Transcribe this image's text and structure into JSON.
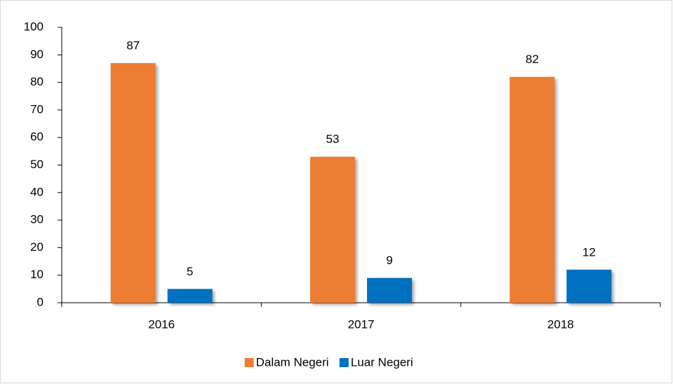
{
  "chart_data": {
    "type": "bar",
    "categories": [
      "2016",
      "2017",
      "2018"
    ],
    "series": [
      {
        "name": "Dalam Negeri",
        "color": "#ed7d31",
        "values": [
          87,
          53,
          82
        ]
      },
      {
        "name": "Luar Negeri",
        "color": "#0070c0",
        "values": [
          5,
          9,
          12
        ]
      }
    ],
    "ylim": [
      0,
      100
    ],
    "yticks": [
      0,
      10,
      20,
      30,
      40,
      50,
      60,
      70,
      80,
      90,
      100
    ],
    "grid": false,
    "legend": "bottom"
  }
}
